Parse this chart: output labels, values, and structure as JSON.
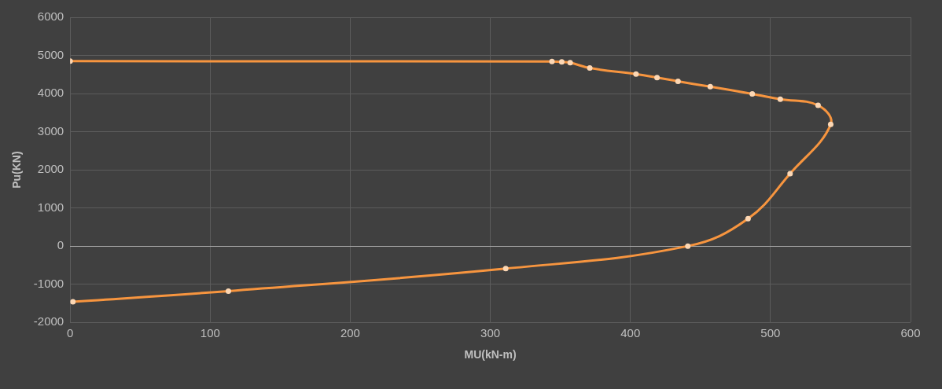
{
  "chart_data": {
    "type": "line",
    "xlabel": "MU(kN-m)",
    "ylabel": "Pu(KN)",
    "series": [
      {
        "color": "#f7953f",
        "x": [
          0,
          344,
          351,
          357,
          371,
          404,
          419,
          434,
          457,
          487,
          507,
          534,
          543,
          514,
          484,
          441,
          311,
          113,
          2
        ],
        "values": [
          4850,
          4840,
          4830,
          4810,
          4670,
          4510,
          4420,
          4320,
          4180,
          3990,
          3850,
          3690,
          3190,
          1900,
          720,
          0,
          -590,
          -1180,
          -1460
        ]
      }
    ],
    "xlim": [
      0,
      600
    ],
    "xticks": [
      0,
      100,
      200,
      300,
      400,
      500,
      600
    ],
    "ylim": [
      -2000,
      6000
    ],
    "yticks": [
      -2000,
      -1000,
      0,
      1000,
      2000,
      3000,
      4000,
      5000,
      6000
    ],
    "grid": true,
    "marker": "circle",
    "line_style": "solid"
  }
}
